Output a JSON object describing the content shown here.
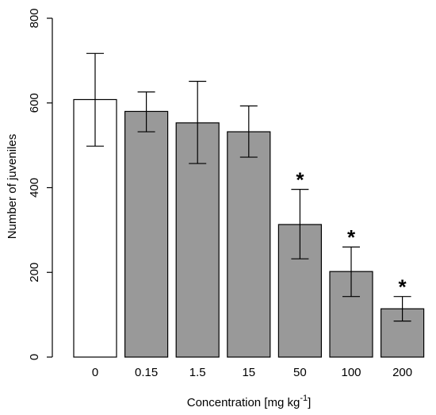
{
  "chart_data": {
    "type": "bar",
    "title": "",
    "xlabel": "Concentration [mg kg",
    "xlabel_superscript": "-1",
    "xlabel_suffix": "]",
    "ylabel": "Number of juveniles",
    "ylim": [
      0,
      800
    ],
    "yticks": [
      0,
      200,
      400,
      600,
      800
    ],
    "categories": [
      "0",
      "0.15",
      "1.5",
      "15",
      "50",
      "100",
      "200"
    ],
    "values": [
      608,
      580,
      553,
      532,
      313,
      202,
      114
    ],
    "error_low": [
      498,
      532,
      457,
      472,
      232,
      143,
      85
    ],
    "error_high": [
      717,
      626,
      651,
      593,
      396,
      260,
      143
    ],
    "significant": [
      false,
      false,
      false,
      false,
      true,
      true,
      true
    ],
    "significance_marker": "*",
    "bar_colors": [
      "#ffffff",
      "#999999",
      "#999999",
      "#999999",
      "#999999",
      "#999999",
      "#999999"
    ],
    "grid": false,
    "legend": "none"
  }
}
